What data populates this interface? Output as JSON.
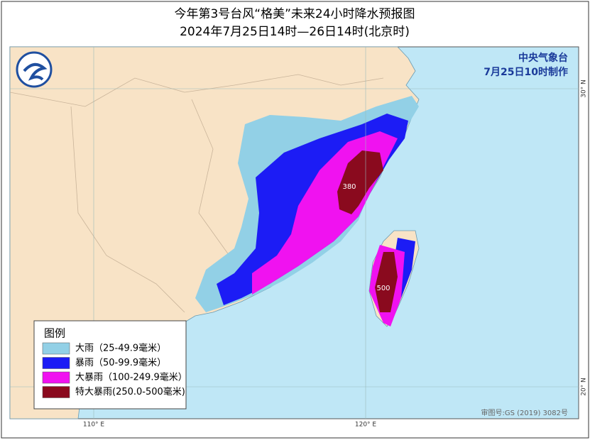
{
  "title": "今年第3号台风“格美”未来24小时降水预报图",
  "subtitle": "2024年7月25日14时—26日14时(北京时)",
  "agency": "中央气象台",
  "issued": "7月25日10时制作",
  "legend": {
    "title": "图例",
    "items": [
      {
        "label": "大雨（25-49.9毫米）",
        "color": "#92d0e6"
      },
      {
        "label": "暴雨（50-99.9毫米）",
        "color": "#1c1cf5"
      },
      {
        "label": "大暴雨（100-249.9毫米）",
        "color": "#f012f0"
      },
      {
        "label": "特大暴雨(250.0-500毫米)",
        "color": "#8a0a1e"
      }
    ]
  },
  "annotations": [
    "380",
    "500"
  ],
  "axis_labels": [
    "110° E",
    "120° E",
    "30° N",
    "20° N"
  ],
  "approval": "审图号:GS (2019) 3082号"
}
